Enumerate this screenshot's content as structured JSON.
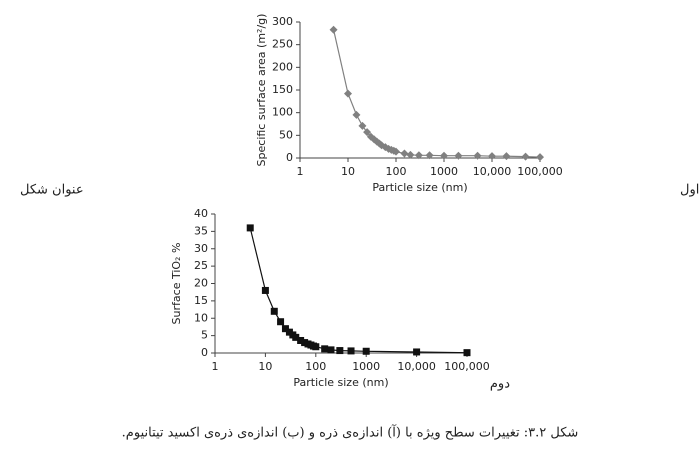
{
  "chart_data": [
    {
      "type": "line",
      "x_label": "Particle size (nm)",
      "y_label": "Specific surface area (m²/g)",
      "xscale": "log",
      "xlim": [
        1,
        100000
      ],
      "xticks": [
        1,
        10,
        100,
        1000,
        {
          "value": 10000,
          "label": "10,000"
        },
        {
          "value": 100000,
          "label": "100,000"
        }
      ],
      "ylim": [
        0,
        300
      ],
      "yticks": [
        0,
        50,
        100,
        150,
        200,
        250,
        300
      ],
      "grid": false,
      "series": [
        {
          "name": "Specific surface area",
          "color": "#808080",
          "marker": "diamond",
          "x": [
            5,
            10,
            15,
            20,
            25,
            30,
            35,
            40,
            45,
            50,
            60,
            70,
            80,
            90,
            100,
            150,
            200,
            300,
            500,
            1000,
            2000,
            5000,
            10000,
            20000,
            50000,
            100000
          ],
          "values": [
            283,
            142,
            95,
            71,
            57,
            47,
            41,
            36,
            32,
            28,
            24,
            20,
            18,
            16,
            14,
            10,
            7,
            6,
            6,
            5,
            5,
            5,
            4,
            4,
            3,
            2
          ]
        }
      ]
    },
    {
      "type": "line",
      "x_label": "Particle size (nm)",
      "y_label": "Surface TiO₂ %",
      "xscale": "log",
      "xlim": [
        1,
        100000
      ],
      "xticks": [
        1,
        10,
        100,
        1000,
        {
          "value": 10000,
          "label": "10,000"
        },
        {
          "value": 100000,
          "label": "100,000"
        }
      ],
      "ylim": [
        0,
        40
      ],
      "yticks": [
        0,
        5,
        10,
        15,
        20,
        25,
        30,
        35,
        40
      ],
      "grid": false,
      "series": [
        {
          "name": "Surface TiO2",
          "color": "#111111",
          "marker": "square",
          "x": [
            5,
            10,
            15,
            20,
            25,
            30,
            35,
            40,
            50,
            60,
            70,
            80,
            90,
            100,
            150,
            200,
            300,
            500,
            1000,
            10000,
            100000
          ],
          "values": [
            36,
            18,
            12,
            9,
            7,
            6,
            5.2,
            4.5,
            3.6,
            3,
            2.6,
            2.3,
            2,
            1.8,
            1.2,
            0.9,
            0.7,
            0.6,
            0.5,
            0.3,
            0.1
          ]
        }
      ]
    }
  ],
  "labels": {
    "first_title": "عنوان شکل اول",
    "second_title_a": "عنوان شکل",
    "second_title_b": "دوم",
    "caption": "شکل ۳.۲: تغییرات سطح ویژه با (آ) اندازه‌ی ذره و (ب) اندازه‌ی ذره‌ی اکسید تیتانیوم."
  }
}
